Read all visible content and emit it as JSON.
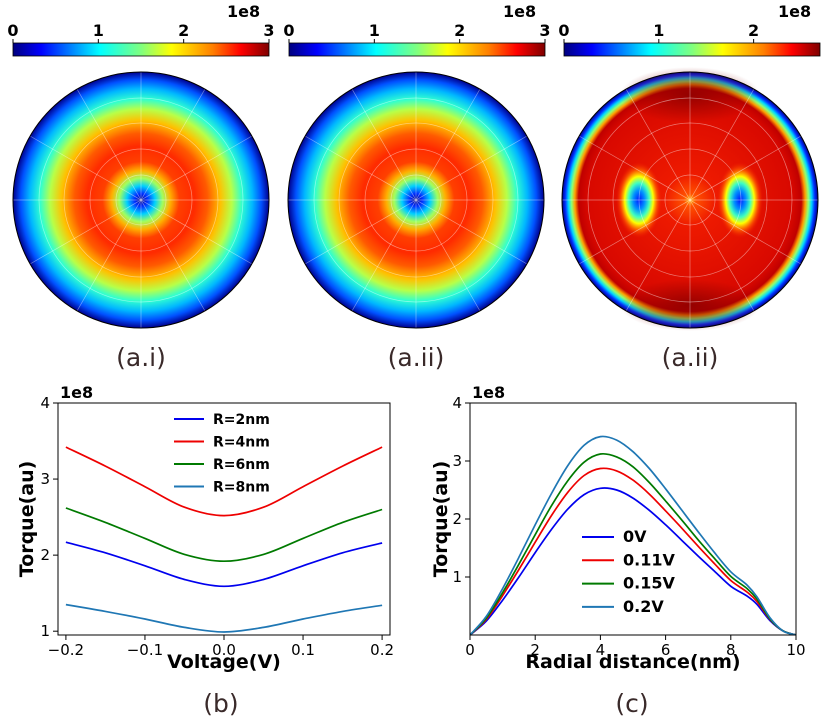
{
  "colors": {
    "jet": [
      "#00007f",
      "#0000ff",
      "#007fff",
      "#00ffff",
      "#7fff7f",
      "#ffff00",
      "#ff7f00",
      "#ff0000",
      "#7f0000"
    ],
    "series_b": [
      "#0000ee",
      "#ee0000",
      "#007a00",
      "#1f77b4"
    ],
    "series_c": [
      "#0000ee",
      "#ee0000",
      "#007a00",
      "#1f77b4"
    ]
  },
  "chart_data": [
    {
      "type": "heatmap",
      "id": "a1",
      "panel_label": "(a.i)",
      "colorbar": {
        "ticks": [
          "0",
          "1",
          "2",
          "3"
        ],
        "exponent": "1e8",
        "range": [
          0,
          3
        ]
      }
    },
    {
      "type": "heatmap",
      "id": "a2",
      "panel_label": "(a.ii)",
      "colorbar": {
        "ticks": [
          "0",
          "1",
          "2",
          "3"
        ],
        "exponent": "1e8",
        "range": [
          0,
          3
        ]
      }
    },
    {
      "type": "heatmap",
      "id": "a3",
      "panel_label": "(a.ii)",
      "colorbar": {
        "ticks": [
          "0",
          "1",
          "2"
        ],
        "exponent": "1e8",
        "range": [
          0,
          2.7
        ]
      }
    },
    {
      "type": "line",
      "id": "b",
      "panel_label": "(b)",
      "xlabel": "Voltage(V)",
      "ylabel": "Torque(au)",
      "y_exponent": "1e8",
      "xlim": [
        -0.21,
        0.21
      ],
      "ylim": [
        0.95,
        4.0
      ],
      "xticks": [
        -0.2,
        -0.1,
        0.0,
        0.1,
        0.2
      ],
      "xtick_labels": [
        "−0.2",
        "−0.1",
        "0.0",
        "0.1",
        "0.2"
      ],
      "yticks": [
        1,
        2,
        3,
        4
      ],
      "ytick_labels": [
        "1",
        "2",
        "3",
        "4"
      ],
      "legend_position": "top-center",
      "x": [
        -0.2,
        -0.15,
        -0.1,
        -0.05,
        0.0,
        0.05,
        0.1,
        0.15,
        0.2
      ],
      "series": [
        {
          "name": "R=2nm",
          "values": [
            2.17,
            2.03,
            1.86,
            1.68,
            1.59,
            1.68,
            1.86,
            2.03,
            2.16
          ]
        },
        {
          "name": "R=4nm",
          "values": [
            3.42,
            3.17,
            2.9,
            2.63,
            2.52,
            2.63,
            2.9,
            3.17,
            3.42
          ]
        },
        {
          "name": "R=6nm",
          "values": [
            2.62,
            2.43,
            2.22,
            2.01,
            1.92,
            2.01,
            2.22,
            2.43,
            2.6
          ]
        },
        {
          "name": "R=8nm",
          "values": [
            1.35,
            1.26,
            1.16,
            1.05,
            0.99,
            1.05,
            1.16,
            1.26,
            1.34
          ]
        }
      ]
    },
    {
      "type": "line",
      "id": "c",
      "panel_label": "(c)",
      "xlabel": "Radial distance(nm)",
      "ylabel": "Torque(au)",
      "y_exponent": "1e8",
      "xlim": [
        0,
        10
      ],
      "ylim": [
        0,
        4
      ],
      "xticks": [
        0,
        2,
        4,
        6,
        8,
        10
      ],
      "xtick_labels": [
        "0",
        "2",
        "4",
        "6",
        "8",
        "10"
      ],
      "yticks": [
        1,
        2,
        3,
        4
      ],
      "ytick_labels": [
        "1",
        "2",
        "3",
        "4"
      ],
      "legend_position": "lower-center",
      "x": [
        0,
        0.5,
        1,
        1.5,
        2,
        2.5,
        3,
        3.5,
        4,
        4.5,
        5,
        5.5,
        6,
        6.5,
        7,
        7.5,
        8,
        8.5,
        8.8,
        9.2,
        9.6,
        10
      ],
      "series": [
        {
          "name": "0V",
          "values": [
            0.0,
            0.24,
            0.6,
            1.0,
            1.42,
            1.82,
            2.17,
            2.42,
            2.53,
            2.5,
            2.36,
            2.15,
            1.9,
            1.63,
            1.36,
            1.1,
            0.84,
            0.67,
            0.53,
            0.25,
            0.07,
            0.0
          ]
        },
        {
          "name": "0.11V",
          "values": [
            0.0,
            0.27,
            0.68,
            1.13,
            1.6,
            2.06,
            2.46,
            2.75,
            2.87,
            2.83,
            2.67,
            2.43,
            2.14,
            1.84,
            1.53,
            1.23,
            0.94,
            0.74,
            0.58,
            0.27,
            0.07,
            0.0
          ]
        },
        {
          "name": "0.15V",
          "values": [
            0.0,
            0.29,
            0.73,
            1.22,
            1.73,
            2.23,
            2.66,
            2.98,
            3.12,
            3.07,
            2.9,
            2.63,
            2.31,
            1.98,
            1.64,
            1.32,
            1.01,
            0.8,
            0.62,
            0.28,
            0.07,
            0.0
          ]
        },
        {
          "name": "0.2V",
          "values": [
            0.0,
            0.32,
            0.8,
            1.34,
            1.9,
            2.44,
            2.92,
            3.27,
            3.42,
            3.36,
            3.16,
            2.87,
            2.52,
            2.15,
            1.78,
            1.42,
            1.09,
            0.86,
            0.66,
            0.3,
            0.07,
            0.0
          ]
        }
      ]
    }
  ]
}
